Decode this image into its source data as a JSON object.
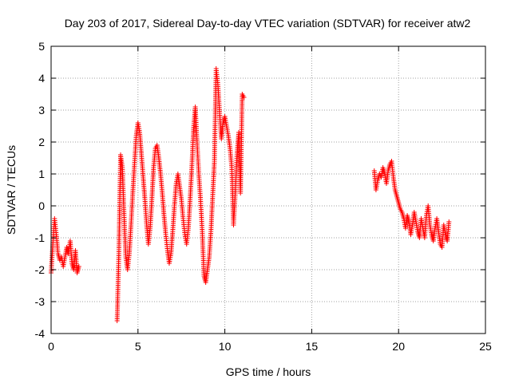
{
  "chart_data": {
    "type": "scatter",
    "title": "Day 203 of 2017, Sidereal Day-to-day VTEC variation (SDTVAR) for receiver atw2",
    "xlabel": "GPS time / hours",
    "ylabel": "SDTVAR / TECUs",
    "xlim": [
      0,
      25
    ],
    "ylim": [
      -4,
      5
    ],
    "xticks": [
      0,
      5,
      10,
      15,
      20,
      25
    ],
    "yticks": [
      -4,
      -3,
      -2,
      -1,
      0,
      1,
      2,
      3,
      4,
      5
    ],
    "grid": true,
    "marker": "+",
    "color": "#ff0000",
    "series": [
      {
        "name": "SDTVAR",
        "segments": [
          {
            "x": [
              0.0,
              0.1,
              0.2,
              0.3,
              0.4,
              0.5,
              0.6,
              0.7,
              0.8,
              0.9,
              1.0,
              1.1,
              1.2,
              1.3,
              1.4,
              1.5,
              1.6
            ],
            "y": [
              -2.1,
              -1.2,
              -0.4,
              -0.9,
              -1.5,
              -1.7,
              -1.6,
              -1.9,
              -1.6,
              -1.3,
              -1.5,
              -1.1,
              -1.8,
              -2.0,
              -1.4,
              -2.1,
              -1.9
            ]
          },
          {
            "x": [
              3.8,
              3.9,
              4.0,
              4.1,
              4.2,
              4.3,
              4.4,
              4.5,
              4.6,
              4.7,
              4.8,
              4.9,
              5.0,
              5.1,
              5.2,
              5.3,
              5.4,
              5.5,
              5.6,
              5.7,
              5.8,
              5.9,
              6.0,
              6.1,
              6.2,
              6.3,
              6.4,
              6.5,
              6.6,
              6.7,
              6.8,
              6.9,
              7.0,
              7.1,
              7.2,
              7.3,
              7.4,
              7.5,
              7.6,
              7.7,
              7.8,
              7.9,
              8.0,
              8.1,
              8.2,
              8.3,
              8.4,
              8.5,
              8.6,
              8.7,
              8.8,
              8.9,
              9.0,
              9.1,
              9.2,
              9.3,
              9.4,
              9.5,
              9.6,
              9.7,
              9.8,
              9.9,
              10.0,
              10.1,
              10.2,
              10.3,
              10.4,
              10.5,
              10.6,
              10.7,
              10.8,
              10.9,
              11.0,
              11.1
            ],
            "y": [
              -3.6,
              -1.5,
              1.6,
              1.2,
              -0.3,
              -1.6,
              -2.0,
              -1.5,
              -0.6,
              0.4,
              1.3,
              2.2,
              2.6,
              2.3,
              1.6,
              0.9,
              0.2,
              -0.6,
              -1.2,
              -0.7,
              0.2,
              1.2,
              1.8,
              1.9,
              1.5,
              1.0,
              0.4,
              -0.3,
              -0.9,
              -1.4,
              -1.8,
              -1.5,
              -0.8,
              0.0,
              0.7,
              1.0,
              0.6,
              0.2,
              -0.4,
              -0.9,
              -1.2,
              -0.7,
              0.2,
              1.2,
              2.4,
              3.1,
              2.0,
              1.0,
              0.2,
              -0.8,
              -2.2,
              -2.4,
              -2.0,
              -1.6,
              -0.8,
              0.3,
              1.4,
              4.3,
              3.8,
              2.9,
              2.1,
              2.6,
              2.8,
              2.5,
              2.2,
              1.8,
              1.2,
              -0.6,
              0.4,
              1.6,
              2.3,
              0.4,
              3.5,
              3.4
            ]
          },
          {
            "x": [
              18.6,
              18.7,
              18.8,
              18.9,
              19.0,
              19.1,
              19.2,
              19.3,
              19.4,
              19.5,
              19.6,
              19.7,
              19.8,
              19.9,
              20.0,
              20.1,
              20.2,
              20.3,
              20.4,
              20.5,
              20.6,
              20.7,
              20.8,
              20.9,
              21.0,
              21.1,
              21.2,
              21.3,
              21.4,
              21.5,
              21.6,
              21.7,
              21.8,
              21.9,
              22.0,
              22.1,
              22.2,
              22.3,
              22.4,
              22.5,
              22.6,
              22.7,
              22.8,
              22.9
            ],
            "y": [
              1.1,
              0.5,
              0.8,
              1.0,
              0.9,
              1.2,
              1.0,
              0.7,
              1.1,
              1.3,
              1.4,
              0.9,
              0.5,
              0.3,
              0.1,
              -0.1,
              -0.2,
              -0.4,
              -0.7,
              -0.3,
              -0.5,
              -0.9,
              -0.6,
              -0.2,
              -0.5,
              -0.8,
              -1.0,
              -0.4,
              -0.7,
              -1.0,
              -0.3,
              0.0,
              -0.6,
              -0.9,
              -1.1,
              -0.7,
              -0.4,
              -0.8,
              -1.2,
              -1.3,
              -0.6,
              -0.9,
              -1.1,
              -0.5
            ]
          }
        ]
      }
    ]
  }
}
